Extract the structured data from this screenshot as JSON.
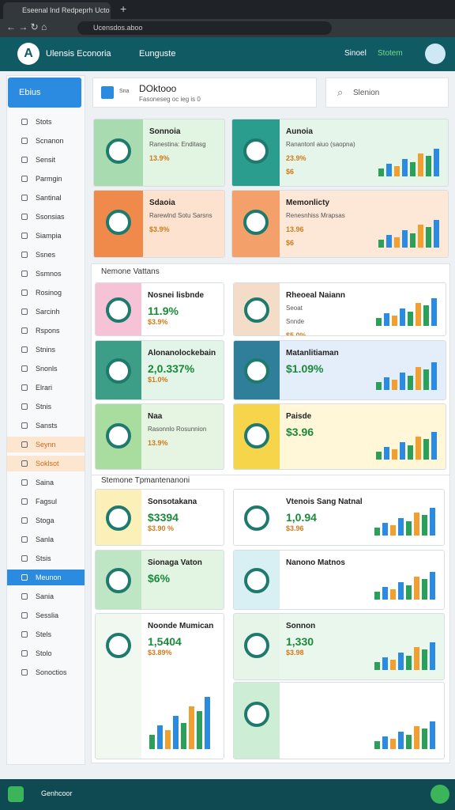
{
  "browser": {
    "tab_title": "Eseenal Ind Redpeprh Ucto",
    "url": "Ucensdos.aboo"
  },
  "header": {
    "app_name": "Ulensis Econoria",
    "menu": "Eunguste",
    "user": "Sinoel",
    "status": "Stotem"
  },
  "sidebar": {
    "active": "Ebius",
    "items": [
      "Stots",
      "Scnanon",
      "Sensit",
      "Parmgin",
      "Santinal",
      "Ssonsias",
      "Siampia",
      "Ssnes",
      "Ssmnos",
      "Rosinog",
      "Sarcinh",
      "Rspons",
      "Stnins",
      "Snonls",
      "Elrari",
      "Stnis",
      "Sansts",
      "Seynn",
      "Soklsot",
      "Saina",
      "Fagsul",
      "Stoga",
      "Sanla",
      "Stsis",
      "Meunon",
      "Sania",
      "Sesslia",
      "Stels",
      "Stolo",
      "Sonoctios"
    ]
  },
  "top": {
    "badge": "Sna",
    "title": "DOktooo",
    "subtitle": "Fasoneseg oc ieg is 0",
    "search": "Slenion"
  },
  "sections": [
    {
      "cards": [
        {
          "texts": [
            "Sonnoia",
            "Ranestina: Enditasg",
            "13.9%"
          ]
        },
        {
          "texts": [
            "Aunoia",
            "Ranantonl aiuo (saopna)",
            "23.9%",
            "$6"
          ]
        },
        {
          "texts": [
            "Sdaoia",
            "Rarewlnd Sotu Sarsns",
            "$3.9%"
          ]
        },
        {
          "texts": [
            "Memonlicty",
            "Renesnhiss Mrapsas",
            "13.96",
            "$6"
          ]
        }
      ]
    },
    {
      "title": "Nemone Vattans",
      "cards": [
        {
          "texts": [
            "Nosnei lisbnde",
            "11.9%",
            "$3.9%"
          ]
        },
        {
          "texts": [
            "Rheoeal Naiann",
            "Seoat",
            "Snnde",
            "$5.0%"
          ]
        },
        {
          "texts": [
            "Alonanolockebain",
            "2,0.337%",
            "$1.0%"
          ]
        },
        {
          "texts": [
            "Matanlitiaman",
            "$1.09%"
          ]
        },
        {
          "texts": [
            "Naa",
            "Rasonnlo Rosunnion",
            "13.9%"
          ]
        },
        {
          "texts": [
            "Paisde",
            "$3.96"
          ]
        }
      ]
    },
    {
      "title": "Stemone Tpmantenanoni",
      "cards": [
        {
          "texts": [
            "Sonsotakana",
            "$3394",
            "$3.90 %"
          ]
        },
        {
          "texts": [
            "Vtenois Sang Natnal",
            "1,0.94",
            "$3.96"
          ]
        },
        {
          "texts": [
            "Sionaga Vaton",
            "$6%"
          ]
        },
        {
          "texts": [
            "Nanono Matnos"
          ]
        },
        {
          "texts": [
            "Noonde Mumican",
            "1,5404",
            "$3.89%"
          ]
        },
        {
          "texts": [
            "Sonnon",
            "1,330",
            "$3.98"
          ]
        },
        {}
      ]
    }
  ],
  "footer": {
    "label": "Genhcoor"
  }
}
